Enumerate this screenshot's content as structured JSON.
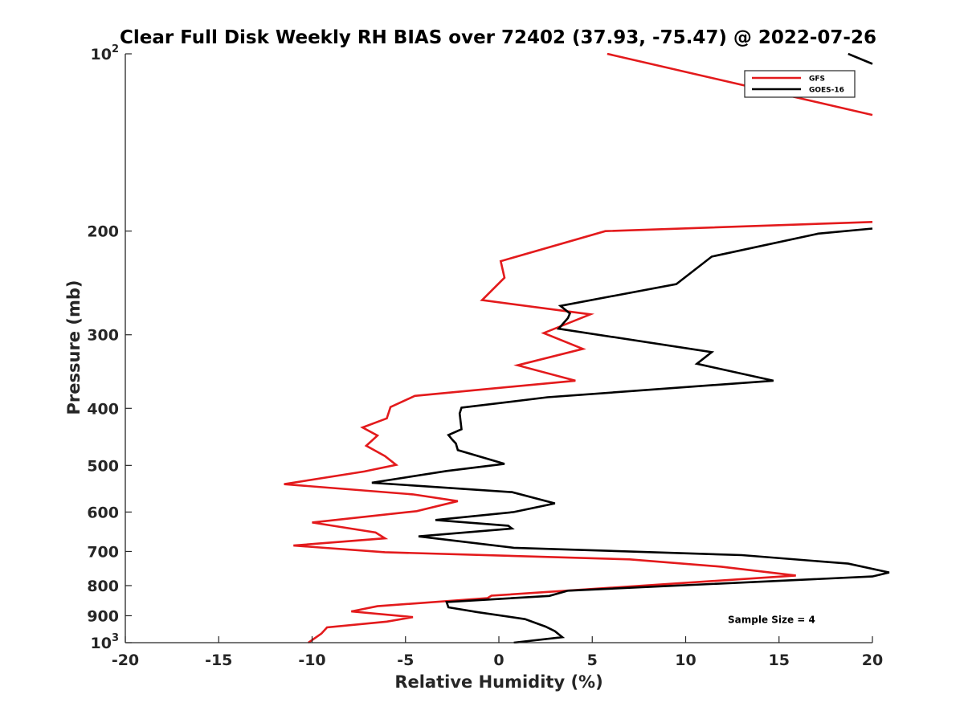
{
  "chart_data": {
    "type": "line",
    "title": "Clear Full Disk Weekly RH BIAS over 72402 (37.93, -75.47) @ 2022-07-26",
    "xlabel": "Relative Humidity (%)",
    "ylabel": "Pressure (mb)",
    "xlim": [
      -20,
      20
    ],
    "ylim": [
      100,
      1000
    ],
    "yscale": "log",
    "y_reversed": true,
    "grid": false,
    "legend_position": "top-right",
    "x_ticks": [
      "-20",
      "-15",
      "-10",
      "-5",
      "0",
      "5",
      "10",
      "15",
      "20"
    ],
    "y_ticks": [
      {
        "value": 100,
        "base": "10",
        "exp": "2"
      },
      {
        "value": 200,
        "label": "200"
      },
      {
        "value": 300,
        "label": "300"
      },
      {
        "value": 400,
        "label": "400"
      },
      {
        "value": 500,
        "label": "500"
      },
      {
        "value": 600,
        "label": "600"
      },
      {
        "value": 700,
        "label": "700"
      },
      {
        "value": 800,
        "label": "800"
      },
      {
        "value": 900,
        "label": "900"
      },
      {
        "value": 1000,
        "base": "10",
        "exp": "3"
      }
    ],
    "annotation": "Sample Size = 4",
    "series": [
      {
        "name": "GFS",
        "color": "#e31a1c",
        "segments": [
          [
            [
              5.8,
              100
            ],
            [
              20,
              127
            ]
          ],
          [
            [
              20,
              193
            ],
            [
              5.7,
              200
            ],
            [
              0.1,
              225
            ],
            [
              0.3,
              240
            ],
            [
              -0.9,
              262
            ],
            [
              4.9,
              277
            ],
            [
              2.4,
              298
            ],
            [
              4.5,
              317
            ],
            [
              1.0,
              338
            ],
            [
              4.1,
              359
            ],
            [
              -4.5,
              381
            ],
            [
              -5.8,
              398
            ],
            [
              -6.0,
              416
            ],
            [
              -7.3,
              431
            ],
            [
              -6.5,
              445
            ],
            [
              -7.1,
              463
            ],
            [
              -6.1,
              482
            ],
            [
              -5.5,
              499
            ],
            [
              -7.2,
              512
            ],
            [
              -11.5,
              538
            ],
            [
              -4.6,
              560
            ],
            [
              -2.2,
              575
            ],
            [
              -4.4,
              598
            ],
            [
              -10.0,
              625
            ],
            [
              -6.6,
              650
            ],
            [
              -6.1,
              665
            ],
            [
              -11.0,
              684
            ],
            [
              -6.1,
              702
            ],
            [
              7.0,
              722
            ],
            [
              11.9,
              743
            ],
            [
              15.9,
              769
            ],
            [
              -0.4,
              832
            ],
            [
              -0.6,
              840
            ],
            [
              -6.5,
              867
            ],
            [
              -7.9,
              885
            ],
            [
              -4.6,
              905
            ],
            [
              -6.0,
              921
            ],
            [
              -9.2,
              942
            ],
            [
              -9.5,
              965
            ],
            [
              -10.2,
              1000
            ]
          ]
        ]
      },
      {
        "name": "GOES-16",
        "color": "#000000",
        "segments": [
          [
            [
              18.7,
              100
            ],
            [
              20,
              104
            ]
          ],
          [
            [
              20,
              198
            ],
            [
              17.1,
              202
            ],
            [
              11.4,
              221
            ],
            [
              9.5,
              246
            ],
            [
              3.3,
              268
            ],
            [
              3.8,
              276
            ],
            [
              3.7,
              281
            ],
            [
              3.2,
              293
            ],
            [
              11.4,
              321
            ],
            [
              10.6,
              336
            ],
            [
              14.7,
              359
            ],
            [
              2.6,
              383
            ],
            [
              -2.0,
              399
            ],
            [
              -2.1,
              408
            ],
            [
              -2.0,
              434
            ],
            [
              -2.7,
              444
            ],
            [
              -2.5,
              452
            ],
            [
              -2.3,
              459
            ],
            [
              -2.2,
              471
            ],
            [
              0.3,
              497
            ],
            [
              -2.8,
              511
            ],
            [
              -6.8,
              535
            ],
            [
              0.7,
              555
            ],
            [
              3.0,
              580
            ],
            [
              0.8,
              600
            ],
            [
              -3.4,
              619
            ],
            [
              0.5,
              633
            ],
            [
              0.7,
              640
            ],
            [
              -4.3,
              660
            ],
            [
              0.8,
              690
            ],
            [
              13.0,
              710
            ],
            [
              18.7,
              734
            ],
            [
              20.9,
              760
            ],
            [
              20,
              772
            ],
            [
              3.7,
              816
            ],
            [
              2.7,
              833
            ],
            [
              -2.8,
              853
            ],
            [
              -2.7,
              871
            ],
            [
              -1.2,
              887
            ],
            [
              1.4,
              912
            ],
            [
              2.5,
              939
            ],
            [
              3.0,
              956
            ],
            [
              3.4,
              979
            ],
            [
              0.8,
              1000
            ]
          ]
        ]
      }
    ]
  }
}
